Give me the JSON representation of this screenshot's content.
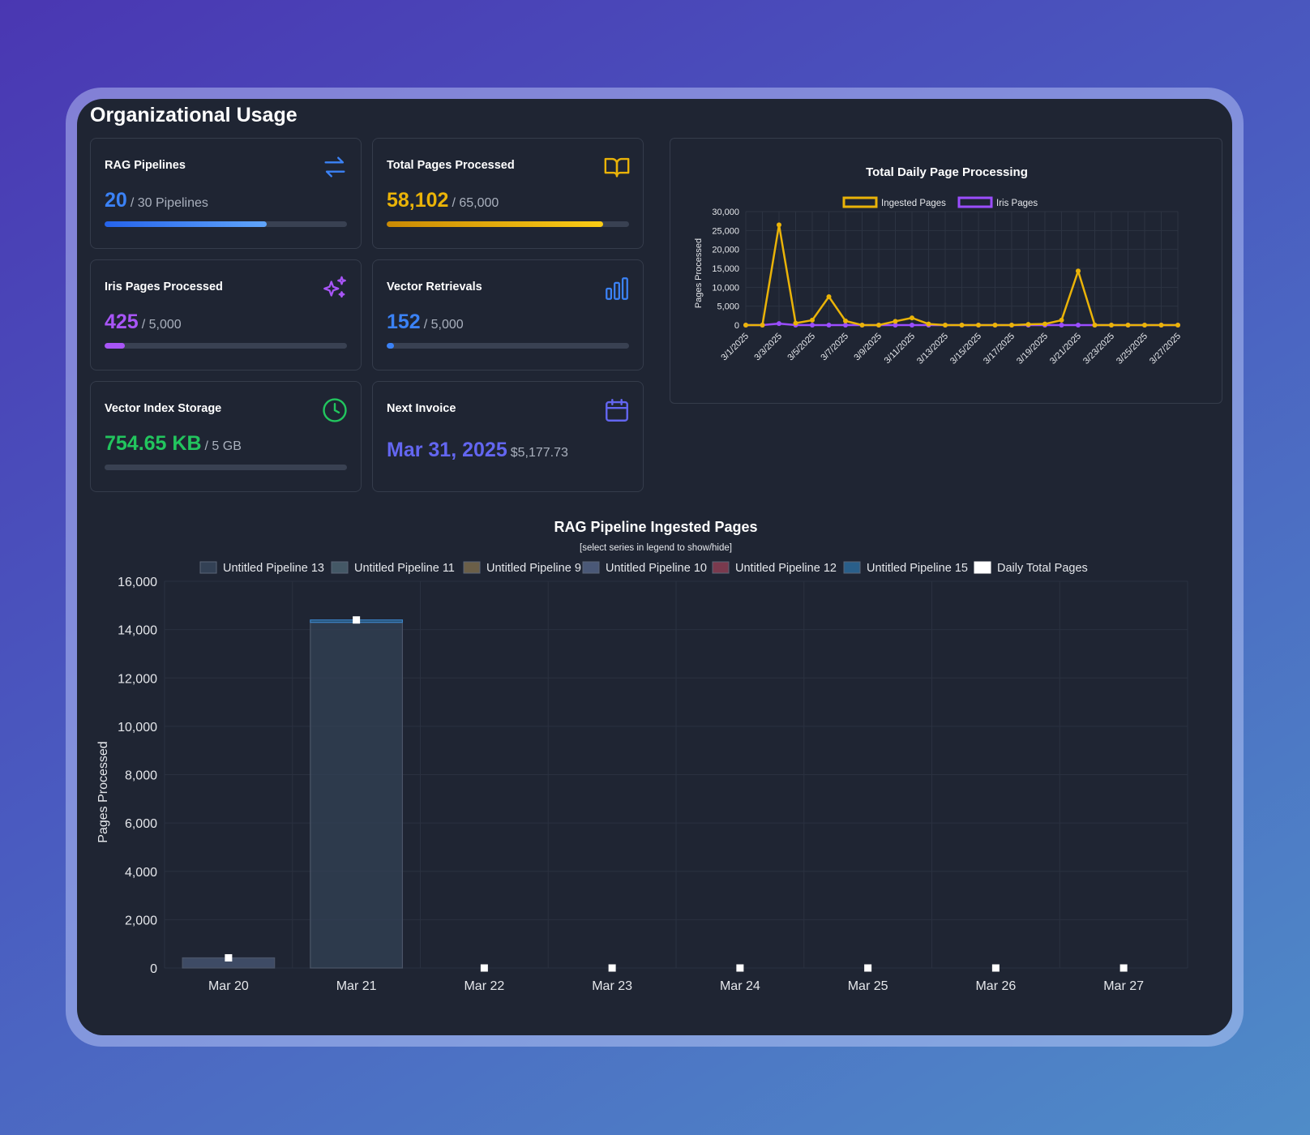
{
  "title": "Organizational Usage",
  "colors": {
    "blue": "#3b82f6",
    "yellow": "#eab308",
    "purple": "#a855f7",
    "green": "#22c55e",
    "indigo": "#6366f1",
    "iris_line": "#9b4dff",
    "ingested_line": "#eab308"
  },
  "cards": {
    "rag": {
      "title": "RAG Pipelines",
      "value": "20",
      "total": "/ 30 Pipelines",
      "progress": 0.67,
      "icon": "arrows-exchange-icon"
    },
    "total": {
      "title": "Total Pages Processed",
      "value": "58,102",
      "total": "/ 65,000",
      "progress": 0.894,
      "icon": "book-open-icon"
    },
    "iris": {
      "title": "Iris Pages Processed",
      "value": "425",
      "total": "/ 5,000",
      "progress": 0.085,
      "icon": "sparkles-icon"
    },
    "vector": {
      "title": "Vector Retrievals",
      "value": "152",
      "total": "/ 5,000",
      "progress": 0.03,
      "icon": "bar-chart-icon"
    },
    "storage": {
      "title": "Vector Index Storage",
      "value": "754.65 KB",
      "total": "/ 5 GB",
      "progress": 0.0,
      "icon": "clock-icon"
    },
    "invoice": {
      "title": "Next Invoice",
      "value": "Mar 31, 2025",
      "total": "$5,177.73",
      "icon": "calendar-icon"
    }
  },
  "chart_data": [
    {
      "type": "line",
      "title": "Total Daily Page Processing",
      "ylabel": "Pages Processed",
      "xlabel": "",
      "ylim": [
        0,
        30000
      ],
      "yticks": [
        "30,000",
        "25,000",
        "20,000",
        "15,000",
        "10,000",
        "5,000",
        "0"
      ],
      "x": [
        "3/1/2025",
        "3/2/2025",
        "3/3/2025",
        "3/4/2025",
        "3/5/2025",
        "3/6/2025",
        "3/7/2025",
        "3/8/2025",
        "3/9/2025",
        "3/10/2025",
        "3/11/2025",
        "3/12/2025",
        "3/13/2025",
        "3/14/2025",
        "3/15/2025",
        "3/16/2025",
        "3/17/2025",
        "3/18/2025",
        "3/19/2025",
        "3/20/2025",
        "3/21/2025",
        "3/22/2025",
        "3/23/2025",
        "3/24/2025",
        "3/25/2025",
        "3/26/2025",
        "3/27/2025"
      ],
      "x_tick_labels": [
        "3/1/2025",
        "3/3/2025",
        "3/5/2025",
        "3/7/2025",
        "3/9/2025",
        "3/11/2025",
        "3/13/2025",
        "3/15/2025",
        "3/17/2025",
        "3/19/2025",
        "3/21/2025",
        "3/23/2025",
        "3/25/2025",
        "3/27/2025"
      ],
      "legend": "top",
      "grid": true,
      "series": [
        {
          "name": "Ingested Pages",
          "values": [
            0,
            0,
            26500,
            500,
            1300,
            7500,
            1100,
            0,
            0,
            1000,
            1900,
            300,
            0,
            0,
            0,
            0,
            0,
            200,
            300,
            1300,
            14300,
            0,
            0,
            0,
            0,
            0,
            0
          ]
        },
        {
          "name": "Iris Pages",
          "values": [
            0,
            0,
            400,
            0,
            0,
            0,
            0,
            0,
            0,
            0,
            0,
            0,
            0,
            0,
            0,
            0,
            0,
            0,
            0,
            0,
            0,
            0,
            0,
            0,
            0,
            0,
            0
          ]
        }
      ]
    },
    {
      "type": "bar",
      "title": "RAG Pipeline Ingested Pages",
      "subtitle": "[select series in legend to show/hide]",
      "ylabel": "Pages Processed",
      "xlabel": "",
      "ylim": [
        0,
        16000
      ],
      "yticks": [
        "16,000",
        "14,000",
        "12,000",
        "10,000",
        "8,000",
        "6,000",
        "4,000",
        "2,000",
        "0"
      ],
      "categories": [
        "Mar 20",
        "Mar 21",
        "Mar 22",
        "Mar 23",
        "Mar 24",
        "Mar 25",
        "Mar 26",
        "Mar 27"
      ],
      "legend": "top",
      "grid": true,
      "series": [
        {
          "name": "Untitled Pipeline 13",
          "color": "#334155",
          "values": [
            0,
            14300,
            0,
            0,
            0,
            0,
            0,
            0
          ]
        },
        {
          "name": "Untitled Pipeline 11",
          "color": "#445866",
          "values": [
            0,
            0,
            0,
            0,
            0,
            0,
            0,
            0
          ]
        },
        {
          "name": "Untitled Pipeline 9",
          "color": "#6b5f48",
          "values": [
            0,
            0,
            0,
            0,
            0,
            0,
            0,
            0
          ]
        },
        {
          "name": "Untitled Pipeline 10",
          "color": "#4a5877",
          "values": [
            420,
            0,
            0,
            0,
            0,
            0,
            0,
            0
          ]
        },
        {
          "name": "Untitled Pipeline 12",
          "color": "#7a3a4e",
          "values": [
            0,
            0,
            0,
            0,
            0,
            0,
            0,
            0
          ]
        },
        {
          "name": "Untitled Pipeline 15",
          "color": "#2a5f8a",
          "values": [
            0,
            100,
            0,
            0,
            0,
            0,
            0,
            0
          ]
        },
        {
          "name": "Daily Total Pages",
          "color": "#ffffff",
          "values": [
            420,
            14400,
            0,
            0,
            0,
            0,
            0,
            0
          ]
        }
      ]
    }
  ]
}
